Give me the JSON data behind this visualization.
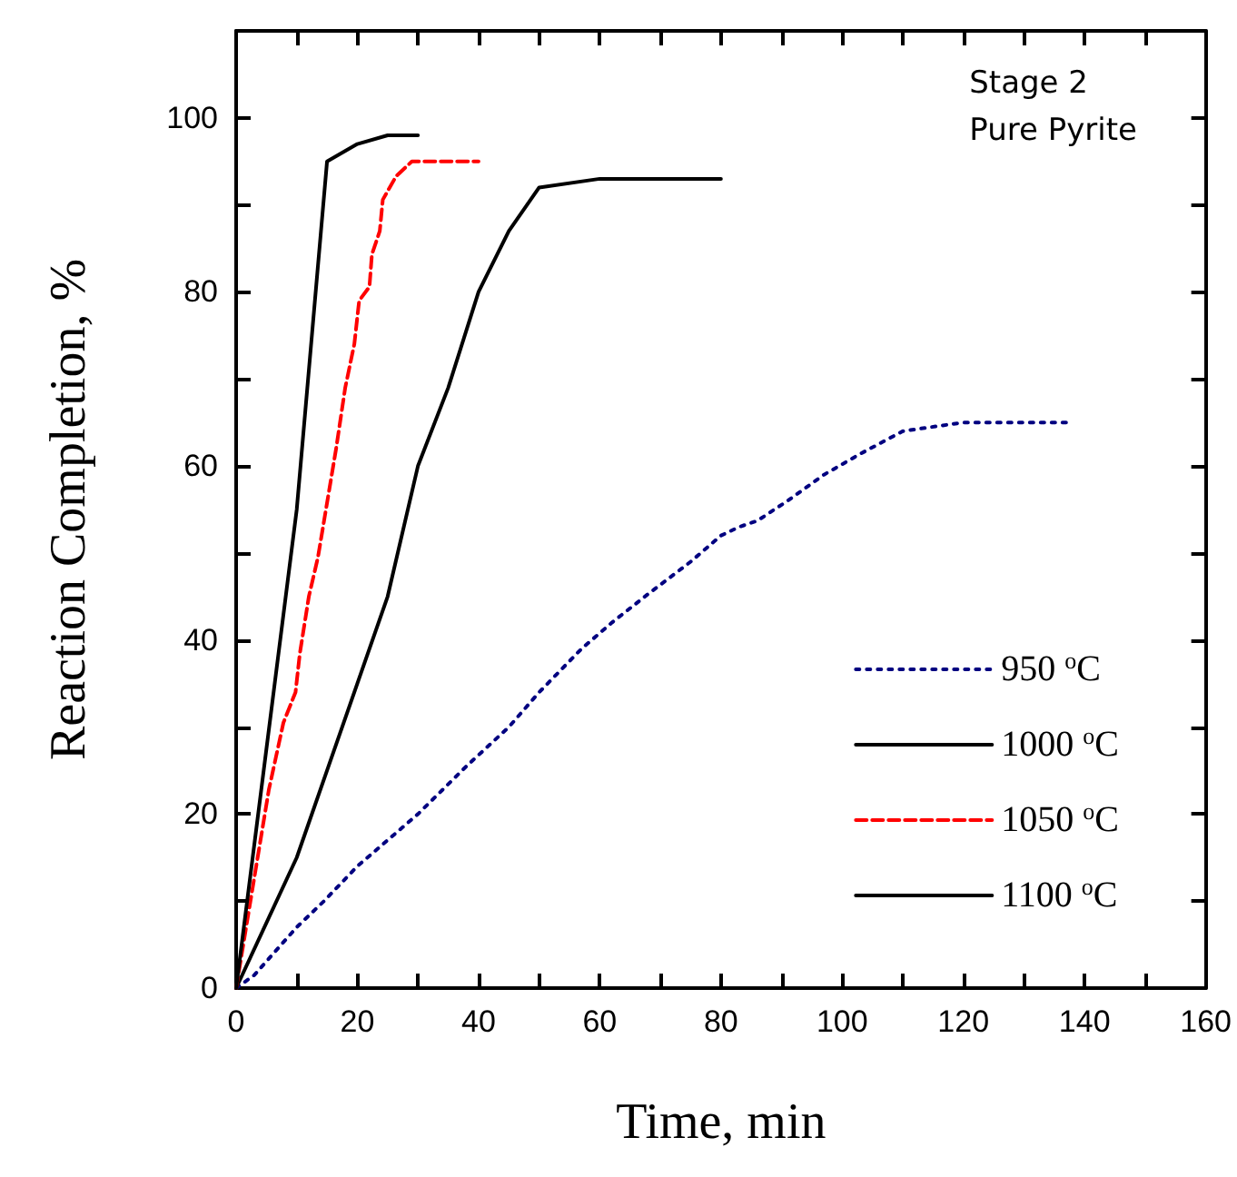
{
  "chart_data": {
    "type": "line",
    "xlabel": "Time, min",
    "ylabel": "Reaction Completion, %",
    "annotations": [
      "Stage 2\nPure Pyrite"
    ],
    "xlim": [
      0,
      160
    ],
    "xticks": [
      0,
      {
        "value": 10,
        "label": null
      },
      20,
      {
        "value": 30,
        "label": null
      },
      40,
      {
        "value": 50,
        "label": null
      },
      60,
      {
        "value": 70,
        "label": null
      },
      80,
      {
        "value": 90,
        "label": null
      },
      100,
      {
        "value": 110,
        "label": null
      },
      120,
      {
        "value": 130,
        "label": null
      },
      140,
      {
        "value": 150,
        "label": null
      },
      160
    ],
    "ylim": [
      0,
      110
    ],
    "yticks": [
      0,
      {
        "value": 10,
        "label": null
      },
      20,
      {
        "value": 30,
        "label": null
      },
      40,
      {
        "value": 50,
        "label": null
      },
      60,
      {
        "value": 70,
        "label": null
      },
      80,
      {
        "value": 90,
        "label": null
      },
      100,
      {
        "value": 110,
        "label": null
      }
    ],
    "grid": false,
    "legend": "bottom right",
    "marker": "none",
    "series": [
      {
        "name": "950 $^{o}$C",
        "color": "#000080",
        "line_style": "dotted",
        "x": [
          0,
          3,
          10,
          14.5,
          20,
          25,
          30,
          38,
          45,
          50,
          57,
          62,
          68,
          75,
          80,
          83,
          86,
          91,
          97,
          103,
          110,
          120,
          138
        ],
        "values": [
          0,
          1.5,
          7,
          10,
          14,
          17,
          20,
          25.5,
          30,
          34,
          39,
          42,
          45.3,
          49,
          52,
          53,
          53.7,
          56,
          59,
          61.4,
          64,
          65,
          65
        ]
      },
      {
        "name": "1000 $^{o}$C",
        "color": "#000000",
        "line_style": "solid",
        "x": [
          0,
          10,
          15,
          20,
          25,
          30,
          35,
          40,
          45,
          50,
          60,
          80
        ],
        "values": [
          0,
          15,
          25,
          35,
          45,
          60,
          69,
          80,
          87,
          92,
          93,
          93
        ]
      },
      {
        "name": "1050 $^{o}$C",
        "color": "#ff0000",
        "line_style": "dashed",
        "x": [
          0,
          3,
          5.4,
          7.8,
          9.8,
          10.5,
          12,
          13.5,
          14.7,
          15.3,
          16.5,
          18,
          19.5,
          20.3,
          22,
          22.4,
          23.7,
          24.2,
          26.4,
          29,
          40
        ],
        "values": [
          0,
          12.7,
          22.8,
          30.5,
          34,
          38.4,
          45,
          49.5,
          54.5,
          57,
          62,
          69,
          74,
          79,
          80.6,
          84.3,
          87,
          90.6,
          93.3,
          95,
          95
        ]
      },
      {
        "name": "1100 $^{o}$C",
        "color": "#000000",
        "line_style": "solid",
        "x": [
          0,
          10,
          15,
          20,
          25,
          30
        ],
        "values": [
          0,
          55,
          95,
          97,
          98,
          98
        ]
      }
    ]
  }
}
